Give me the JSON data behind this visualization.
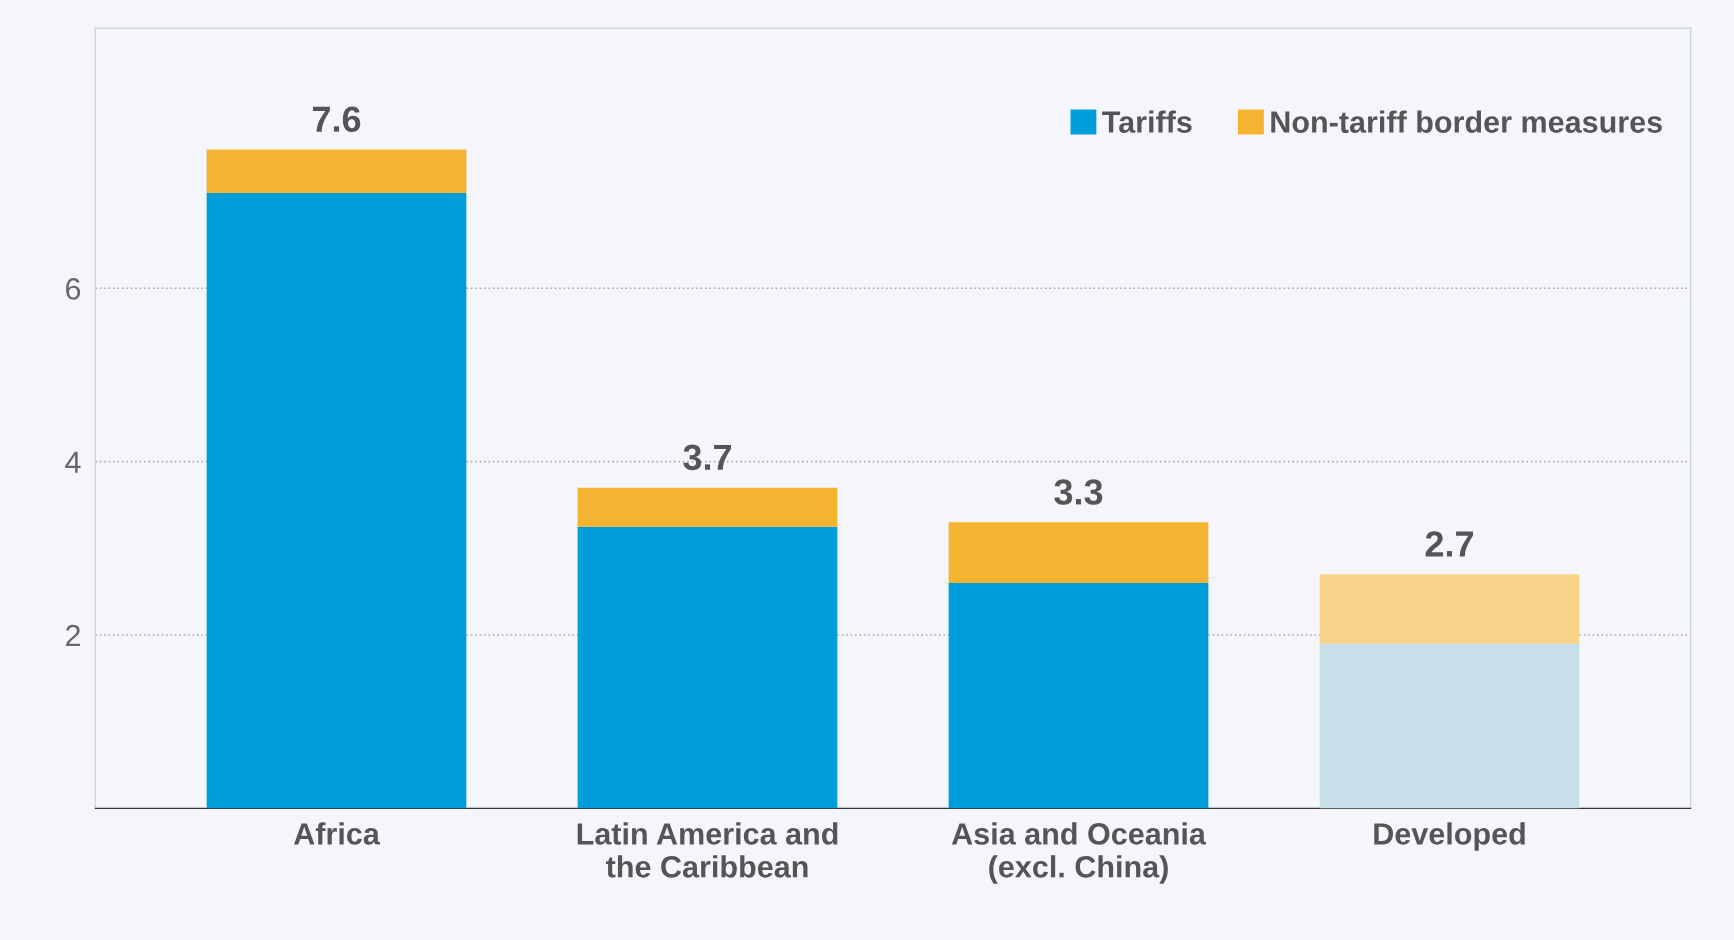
{
  "chart_data": {
    "type": "bar",
    "stacked": true,
    "categories": [
      "Africa",
      "Latin America and\nthe Caribbean",
      "Asia and Oceania\n(excl. China)",
      "Developed"
    ],
    "series": [
      {
        "name": "Tariffs",
        "color": "#009ddb",
        "colors": [
          "#009ddb",
          "#009ddb",
          "#009ddb",
          "#c8dfea"
        ],
        "values": [
          7.1,
          3.25,
          2.6,
          1.9
        ]
      },
      {
        "name": "Non-tariff border measures",
        "color": "#f4b331",
        "colors": [
          "#f4b331",
          "#f4b331",
          "#f4b331",
          "#f7d38a"
        ],
        "values": [
          0.5,
          0.45,
          0.7,
          0.8
        ]
      }
    ],
    "totals": [
      "7.6",
      "3.7",
      "3.3",
      "2.7"
    ],
    "ylim": [
      0,
      9
    ],
    "yticks": [
      2,
      4,
      6
    ],
    "grid": "y",
    "legend": "top right"
  }
}
